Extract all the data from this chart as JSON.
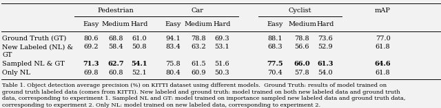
{
  "col_headers_top": [
    "Pedestrian",
    "Car",
    "Cyclist"
  ],
  "col_headers_sub": [
    "Easy",
    "Medium",
    "Hard"
  ],
  "rows": [
    {
      "label": "Ground Truth (GT)",
      "label2": "",
      "values": [
        "80.6",
        "68.8",
        "61.0",
        "94.1",
        "78.8",
        "69.3",
        "88.1",
        "78.8",
        "73.6",
        "77.0"
      ],
      "bold": [
        false,
        false,
        false,
        false,
        false,
        false,
        false,
        false,
        false,
        false
      ]
    },
    {
      "label": "New Labeled (NL) &",
      "label2": "GT",
      "values": [
        "69.2",
        "58.4",
        "50.8",
        "83.4",
        "63.2",
        "53.1",
        "68.3",
        "56.6",
        "52.9",
        "61.8"
      ],
      "bold": [
        false,
        false,
        false,
        false,
        false,
        false,
        false,
        false,
        false,
        false
      ]
    },
    {
      "label": "Sampled NL & GT",
      "label2": "",
      "values": [
        "71.3",
        "62.7",
        "54.1",
        "75.8",
        "61.5",
        "51.6",
        "77.5",
        "66.0",
        "61.3",
        "64.6"
      ],
      "bold": [
        true,
        true,
        true,
        false,
        false,
        false,
        true,
        true,
        true,
        true
      ]
    },
    {
      "label": "Only NL",
      "label2": "",
      "values": [
        "69.8",
        "60.8",
        "52.1",
        "80.4",
        "60.9",
        "50.3",
        "70.4",
        "57.8",
        "54.0",
        "61.8"
      ],
      "bold": [
        false,
        false,
        false,
        false,
        false,
        false,
        false,
        false,
        false,
        false
      ]
    }
  ],
  "caption_lines": [
    "Table 1. Object detection average precision (%) on KITTI dataset using different models.  Ground Truth: results of model trained on",
    "ground truth labeled data (comes from KITTI). New labeled and ground truth: model trained on both new labeled data and ground truth",
    "data, corresponding to experiment 1. Sampled NL and GT: model trained on importance sampled new labeled data and ground truth data,",
    "corresponding to experiment 2. Only NL: model trained on new labeled data, corresponding to experiment 2."
  ],
  "bg_color": "#f2f2f2",
  "font_size": 7.0,
  "caption_font_size": 6.0
}
